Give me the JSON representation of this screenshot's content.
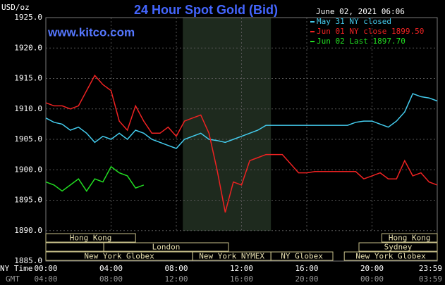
{
  "chart_data": {
    "type": "line",
    "title": "24 Hour Spot Gold (Bid)",
    "watermark": "www.kitco.com",
    "timestamp": "June 02, 2021 06:06",
    "y_label": "USD/oz",
    "x_label": "NY Time",
    "x2_label": "GMT",
    "xlim": [
      0,
      24
    ],
    "ylim": [
      1885,
      1925
    ],
    "xticks": [
      {
        "value": 0,
        "label": "00:00"
      },
      {
        "value": 4,
        "label": "04:00"
      },
      {
        "value": 8,
        "label": "08:00"
      },
      {
        "value": 12,
        "label": "12:00"
      },
      {
        "value": 16,
        "label": "16:00"
      },
      {
        "value": 20,
        "label": "20:00"
      },
      {
        "value": 23.98,
        "label": "23:59"
      }
    ],
    "x2ticks": [
      {
        "value": 0,
        "label": "04:00"
      },
      {
        "value": 4,
        "label": "08:00"
      },
      {
        "value": 8,
        "label": "12:00"
      },
      {
        "value": 12,
        "label": "16:00"
      },
      {
        "value": 16,
        "label": "20:00"
      },
      {
        "value": 20,
        "label": "00:00"
      },
      {
        "value": 23.98,
        "label": "03:59"
      }
    ],
    "yticks": [
      {
        "value": 1885,
        "label": "1885.0"
      },
      {
        "value": 1890,
        "label": "1890.0"
      },
      {
        "value": 1895,
        "label": "1895.0"
      },
      {
        "value": 1900,
        "label": "1900.0"
      },
      {
        "value": 1905,
        "label": "1905.0"
      },
      {
        "value": 1910,
        "label": "1910.0"
      },
      {
        "value": 1915,
        "label": "1915.0"
      },
      {
        "value": 1920,
        "label": "1920.0"
      },
      {
        "value": 1925,
        "label": "1925.0"
      }
    ],
    "grid": true,
    "highlight": {
      "start": 8.4,
      "end": 13.8
    },
    "x": [
      0,
      0.5,
      1,
      1.5,
      2,
      2.5,
      3,
      3.5,
      4,
      4.5,
      5,
      5.5,
      6,
      6.5,
      7,
      7.5,
      8,
      8.5,
      9,
      9.5,
      10,
      10.5,
      11,
      11.5,
      12,
      12.5,
      13,
      13.5,
      14,
      14.5,
      15,
      15.5,
      16,
      16.5,
      17,
      17.5,
      18,
      18.5,
      19,
      19.5,
      20,
      20.5,
      21,
      21.5,
      22,
      22.5,
      23,
      23.5,
      24
    ],
    "series": [
      {
        "name": "May 31 NY closed",
        "color": "#44ccee",
        "values": [
          1908.5,
          1907.8,
          1907.5,
          1906.5,
          1907,
          1906,
          1904.5,
          1905.5,
          1905,
          1906,
          1905,
          1906.5,
          1906,
          1905,
          1904.5,
          1904,
          1903.5,
          1905,
          1905.5,
          1906,
          1905,
          1904.8,
          1904.5,
          1905,
          1905.5,
          1906,
          1906.5,
          1907.3,
          1907.3,
          1907.3,
          1907.3,
          1907.3,
          1907.3,
          1907.3,
          1907.3,
          1907.3,
          1907.3,
          1907.3,
          1907.8,
          1908,
          1908,
          1907.5,
          1907,
          1908,
          1909.5,
          1912.5,
          1912,
          1911.8,
          1911.3
        ]
      },
      {
        "name": "Jun 01 NY close 1899.50",
        "color": "#ee2222",
        "values": [
          1911,
          1910.5,
          1910.5,
          1910,
          1910.5,
          1913,
          1915.5,
          1914,
          1913,
          1908,
          1906.5,
          1910.5,
          1908,
          1906,
          1906,
          1907,
          1905.5,
          1908,
          1908.5,
          1909,
          1906,
          1900,
          1893,
          1898,
          1897.5,
          1901.5,
          1902,
          1902.5,
          1902.5,
          1902.5,
          1901,
          1899.5,
          1899.5,
          1899.7,
          1899.7,
          1899.7,
          1899.7,
          1899.7,
          1899.7,
          1898.5,
          1899,
          1899.5,
          1898.5,
          1898.5,
          1901.5,
          1899,
          1899.5,
          1898,
          1897.5
        ]
      },
      {
        "name": "Jun 02 Last 1897.70",
        "color": "#22dd22",
        "values": [
          1898,
          1897.5,
          1896.5,
          1897.5,
          1898.5,
          1896.5,
          1898.5,
          1898,
          1900.5,
          1899.5,
          1899,
          1897,
          1897.5,
          null,
          null,
          null,
          null,
          null,
          null,
          null,
          null,
          null,
          null,
          null,
          null,
          null,
          null,
          null,
          null,
          null,
          null,
          null,
          null,
          null,
          null,
          null,
          null,
          null,
          null,
          null,
          null,
          null,
          null,
          null,
          null,
          null,
          null,
          null,
          null
        ]
      }
    ],
    "session_rows": [
      [
        {
          "label": "Hong Kong",
          "start": 0,
          "end": 5.5
        },
        {
          "label": "Hong Kong",
          "start": 20.6,
          "end": 24
        }
      ],
      [
        {
          "label": null,
          "start": 0,
          "end": 3.55
        },
        {
          "label": "London",
          "start": 3.55,
          "end": 11.2
        },
        {
          "label": "Sydney",
          "start": 19.2,
          "end": 24
        }
      ],
      [
        {
          "label": "New York Globex",
          "start": 0,
          "end": 9.0
        },
        {
          "label": "New York NYMEX",
          "start": 9.0,
          "end": 13.8
        },
        {
          "label": "NY Globex",
          "start": 13.8,
          "end": 17.6
        },
        {
          "label": "New York Globex",
          "start": 18.3,
          "end": 24
        }
      ]
    ]
  }
}
